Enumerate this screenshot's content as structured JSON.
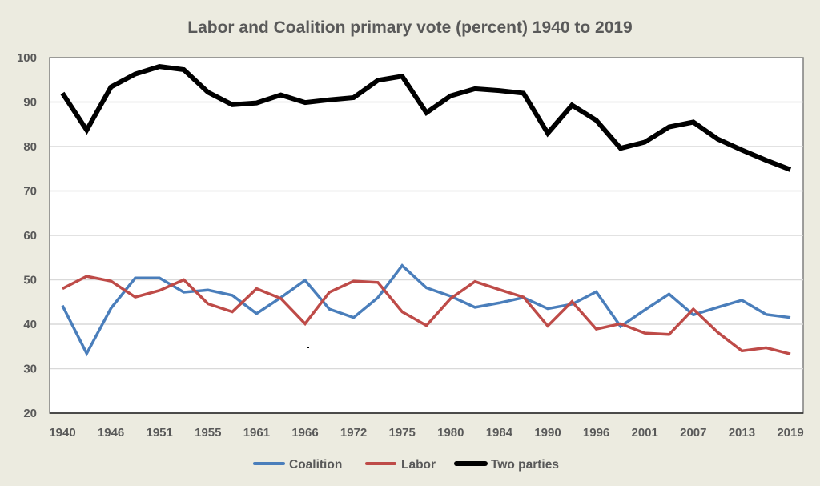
{
  "chart_data": {
    "type": "line",
    "title": "Labor and Coalition primary vote (percent) 1940 to 2019",
    "xlabel": "",
    "ylabel": "",
    "ylim": [
      20,
      100
    ],
    "yticks": [
      "20",
      "30",
      "40",
      "50",
      "60",
      "70",
      "80",
      "90",
      "100"
    ],
    "grid": true,
    "legend_position": "bottom",
    "x": [
      "1940",
      "1943",
      "1946",
      "1949",
      "1951",
      "1954",
      "1955",
      "1958",
      "1961",
      "1963",
      "1966",
      "1969",
      "1972",
      "1974",
      "1975",
      "1977",
      "1980",
      "1983",
      "1984",
      "1987",
      "1990",
      "1993",
      "1996",
      "1998",
      "2001",
      "2004",
      "2007",
      "2010",
      "2013",
      "2016",
      "2019"
    ],
    "xtick_labels": [
      "1940",
      "1946",
      "1951",
      "1955",
      "1961",
      "1966",
      "1972",
      "1975",
      "1980",
      "1984",
      "1990",
      "1996",
      "2001",
      "2007",
      "2013",
      "2019"
    ],
    "series": [
      {
        "name": "Coalition",
        "color": "#4a7ebb",
        "values": [
          44.2,
          33.4,
          43.6,
          50.4,
          50.4,
          47.2,
          47.7,
          46.5,
          42.4,
          46.0,
          49.9,
          43.4,
          41.5,
          46.0,
          53.2,
          48.2,
          46.3,
          43.8,
          44.8,
          46.0,
          43.5,
          44.5,
          47.3,
          39.5,
          43.2,
          46.8,
          42.1,
          43.8,
          45.4,
          42.2,
          41.5
        ]
      },
      {
        "name": "Labor",
        "color": "#be4b48",
        "values": [
          48.0,
          50.8,
          49.7,
          46.1,
          47.6,
          50.0,
          44.6,
          42.8,
          48.0,
          45.8,
          40.1,
          47.2,
          49.7,
          49.4,
          42.8,
          39.7,
          45.8,
          49.6,
          47.8,
          46.1,
          39.6,
          45.1,
          38.9,
          40.1,
          38.0,
          37.7,
          43.4,
          38.2,
          34.0,
          34.7,
          33.3
        ]
      },
      {
        "name": "Two parties",
        "color": "#000000",
        "values": [
          92.0,
          83.7,
          93.4,
          96.3,
          98.0,
          97.3,
          92.2,
          89.4,
          89.8,
          91.6,
          89.9,
          90.5,
          91.0,
          94.9,
          95.8,
          87.6,
          91.4,
          93.0,
          92.6,
          92.0,
          83.0,
          89.3,
          85.9,
          79.6,
          81.0,
          84.4,
          85.5,
          81.7,
          79.2,
          76.9,
          74.8
        ]
      }
    ]
  }
}
